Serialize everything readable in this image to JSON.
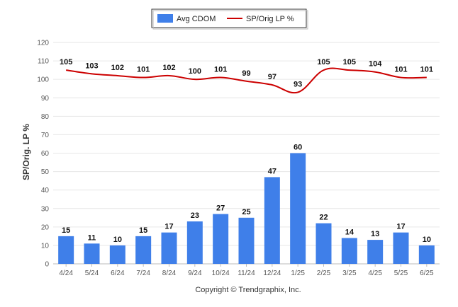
{
  "chart_data": {
    "type": "bar",
    "categories": [
      "4/24",
      "5/24",
      "6/24",
      "7/24",
      "8/24",
      "9/24",
      "10/24",
      "11/24",
      "12/24",
      "1/25",
      "2/25",
      "3/25",
      "4/25",
      "5/25",
      "6/25"
    ],
    "series": [
      {
        "name": "Avg CDOM",
        "type": "bar",
        "color": "#3f7fe9",
        "values": [
          15,
          11,
          10,
          15,
          17,
          23,
          27,
          25,
          47,
          60,
          22,
          14,
          13,
          17,
          10
        ]
      },
      {
        "name": "SP/Orig LP %",
        "type": "line",
        "color": "#cc0000",
        "values": [
          105,
          103,
          102,
          101,
          102,
          100,
          101,
          99,
          97,
          93,
          105,
          105,
          104,
          101,
          101
        ]
      }
    ],
    "ylabel": "SP/Orig. LP %",
    "ylim": [
      0,
      120
    ],
    "yticks": [
      0,
      10,
      20,
      30,
      40,
      50,
      60,
      70,
      80,
      90,
      100,
      110,
      120
    ],
    "grid": true,
    "legend_position": "top-center"
  },
  "copyright": "Copyright © Trendgraphix, Inc."
}
